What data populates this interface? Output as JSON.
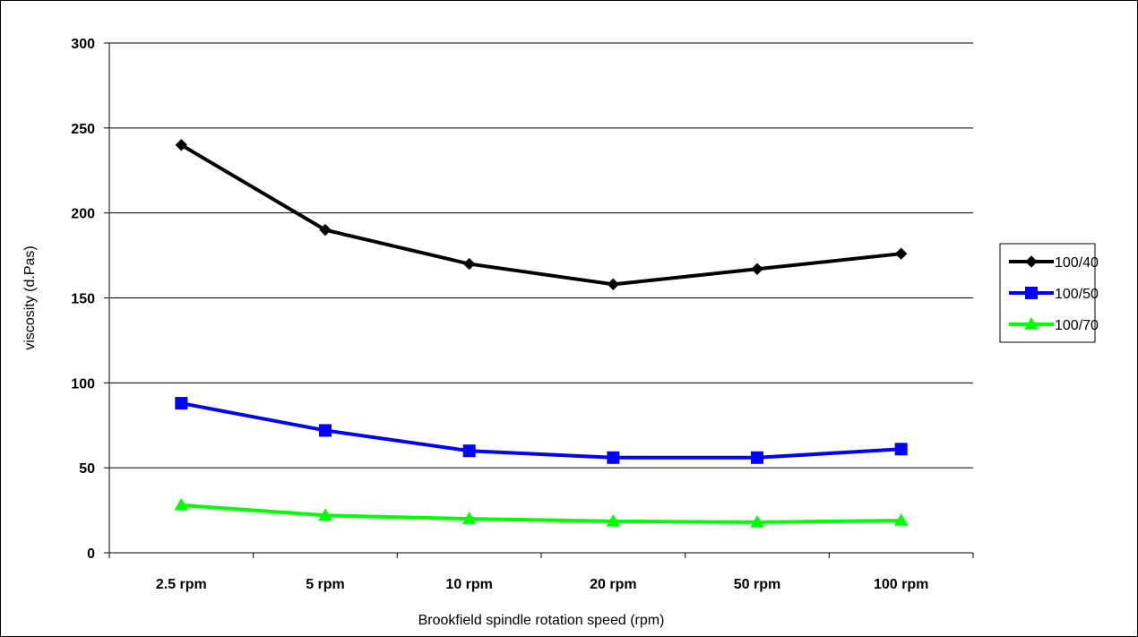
{
  "chart_data": {
    "type": "line",
    "title": "",
    "xlabel": "Brookfield spindle rotation speed (rpm)",
    "ylabel": "viscosity (d.Pas)",
    "categories": [
      "2.5 rpm",
      "5 rpm",
      "10 rpm",
      "20 rpm",
      "50 rpm",
      "100 rpm"
    ],
    "ylim": [
      0,
      300
    ],
    "yticks": [
      0,
      50,
      100,
      150,
      200,
      250,
      300
    ],
    "grid": true,
    "legend_position": "right",
    "series": [
      {
        "name": "100/40",
        "color": "#000000",
        "marker": "diamond",
        "values": [
          240,
          190,
          170,
          158,
          167,
          176
        ]
      },
      {
        "name": "100/50",
        "color": "#0000ff",
        "marker": "square",
        "values": [
          88,
          72,
          60,
          56,
          56,
          61
        ]
      },
      {
        "name": "100/70",
        "color": "#00ff00",
        "marker": "triangle",
        "values": [
          28,
          22,
          20,
          18.5,
          18,
          19
        ]
      }
    ]
  }
}
